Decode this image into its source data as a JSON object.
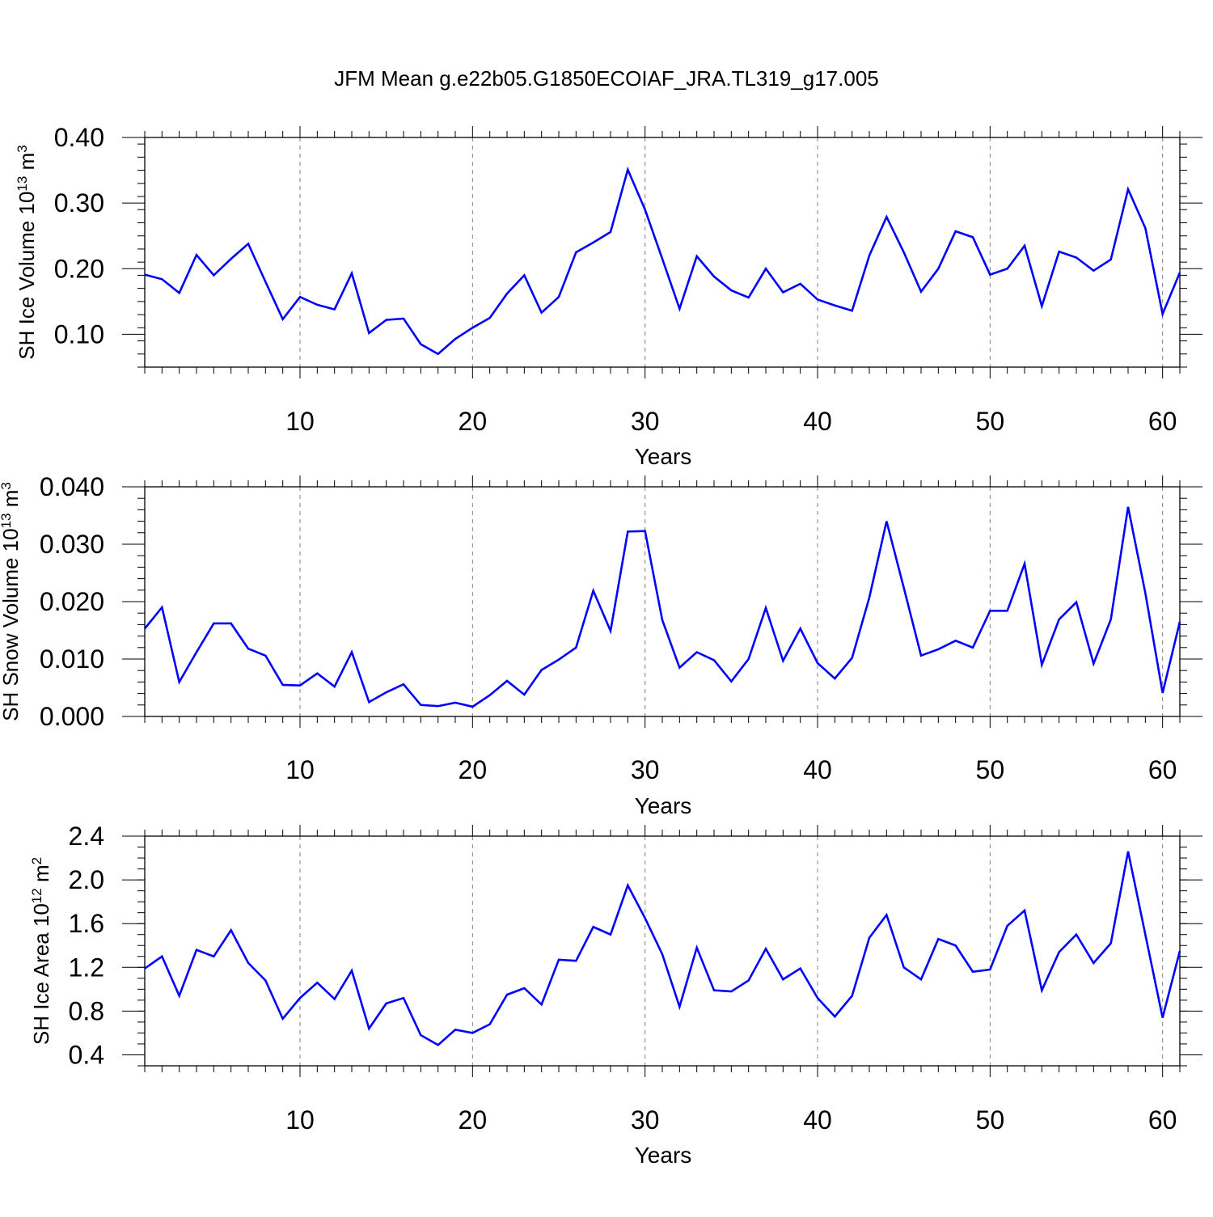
{
  "title": "JFM Mean g.e22b05.G1850ECOIAF_JRA.TL319_g17.005",
  "colors": {
    "line": "#0000ff",
    "axis": "#000000",
    "grid": "#808080",
    "background": "#ffffff"
  },
  "chart_data": [
    {
      "type": "line",
      "ylabel_main": "SH Ice Volume 10",
      "ylabel_exp": "13",
      "ylabel_unit": "m",
      "ylabel_unit_exp": "3",
      "xlabel": "Years",
      "xlim": [
        1,
        61
      ],
      "ylim": [
        0.05,
        0.4
      ],
      "xticks": [
        10,
        20,
        30,
        40,
        50,
        60
      ],
      "xtick_labels": [
        "10",
        "20",
        "30",
        "40",
        "50",
        "60"
      ],
      "yticks": [
        0.1,
        0.2,
        0.3,
        0.4
      ],
      "ytick_labels": [
        "0.10",
        "0.20",
        "0.30",
        "0.40"
      ],
      "yminor_step": 0.02,
      "grid_x": true,
      "x_start": 1,
      "values": [
        0.191,
        0.184,
        0.163,
        0.221,
        0.19,
        0.215,
        0.238,
        0.18,
        0.123,
        0.157,
        0.145,
        0.138,
        0.193,
        0.102,
        0.122,
        0.124,
        0.085,
        0.07,
        0.093,
        0.11,
        0.125,
        0.162,
        0.19,
        0.133,
        0.157,
        0.225,
        0.24,
        0.256,
        0.351,
        0.29,
        0.215,
        0.139,
        0.219,
        0.188,
        0.167,
        0.156,
        0.2,
        0.164,
        0.177,
        0.153,
        0.144,
        0.136,
        0.22,
        0.279,
        0.225,
        0.165,
        0.2,
        0.257,
        0.248,
        0.191,
        0.2,
        0.235,
        0.143,
        0.226,
        0.217,
        0.197,
        0.214,
        0.321,
        0.262,
        0.131,
        0.194
      ]
    },
    {
      "type": "line",
      "ylabel_main": "SH Snow Volume 10",
      "ylabel_exp": "13",
      "ylabel_unit": "m",
      "ylabel_unit_exp": "3",
      "xlabel": "Years",
      "xlim": [
        1,
        61
      ],
      "ylim": [
        0.0,
        0.04
      ],
      "xticks": [
        10,
        20,
        30,
        40,
        50,
        60
      ],
      "xtick_labels": [
        "10",
        "20",
        "30",
        "40",
        "50",
        "60"
      ],
      "yticks": [
        0.0,
        0.01,
        0.02,
        0.03,
        0.04
      ],
      "ytick_labels": [
        "0.000",
        "0.010",
        "0.020",
        "0.030",
        "0.040"
      ],
      "yminor_step": 0.002,
      "grid_x": true,
      "x_start": 1,
      "values": [
        0.0153,
        0.019,
        0.006,
        0.0112,
        0.0162,
        0.0162,
        0.0118,
        0.0106,
        0.0055,
        0.0054,
        0.0075,
        0.0052,
        0.0112,
        0.0025,
        0.0042,
        0.0056,
        0.002,
        0.0018,
        0.0024,
        0.0017,
        0.0037,
        0.0062,
        0.0038,
        0.0081,
        0.0099,
        0.012,
        0.0219,
        0.0149,
        0.0322,
        0.0323,
        0.0168,
        0.0085,
        0.0112,
        0.0098,
        0.0061,
        0.01,
        0.0189,
        0.0097,
        0.0153,
        0.0093,
        0.0066,
        0.0102,
        0.0207,
        0.034,
        0.0224,
        0.0106,
        0.0117,
        0.0132,
        0.012,
        0.0184,
        0.0184,
        0.0266,
        0.009,
        0.0169,
        0.0199,
        0.0092,
        0.0169,
        0.0365,
        0.0215,
        0.0041,
        0.0165
      ]
    },
    {
      "type": "line",
      "ylabel_main": "SH Ice Area 10",
      "ylabel_exp": "12",
      "ylabel_unit": "m",
      "ylabel_unit_exp": "2",
      "xlabel": "Years",
      "xlim": [
        1,
        61
      ],
      "ylim": [
        0.3,
        2.4
      ],
      "xticks": [
        10,
        20,
        30,
        40,
        50,
        60
      ],
      "xtick_labels": [
        "10",
        "20",
        "30",
        "40",
        "50",
        "60"
      ],
      "yticks": [
        0.4,
        0.8,
        1.2,
        1.6,
        2.0,
        2.4
      ],
      "ytick_labels": [
        "0.4",
        "0.8",
        "1.2",
        "1.6",
        "2.0",
        "2.4"
      ],
      "yminor_step": 0.1,
      "grid_x": true,
      "x_start": 1,
      "values": [
        1.19,
        1.3,
        0.94,
        1.36,
        1.3,
        1.54,
        1.24,
        1.08,
        0.73,
        0.92,
        1.06,
        0.91,
        1.17,
        0.64,
        0.87,
        0.92,
        0.58,
        0.49,
        0.63,
        0.6,
        0.68,
        0.95,
        1.01,
        0.86,
        1.27,
        1.26,
        1.57,
        1.5,
        1.95,
        1.65,
        1.32,
        0.84,
        1.38,
        0.99,
        0.98,
        1.08,
        1.37,
        1.09,
        1.19,
        0.92,
        0.75,
        0.94,
        1.47,
        1.68,
        1.2,
        1.09,
        1.46,
        1.4,
        1.16,
        1.18,
        1.58,
        1.72,
        0.99,
        1.34,
        1.5,
        1.24,
        1.42,
        2.26,
        1.5,
        0.74,
        1.35
      ]
    }
  ]
}
